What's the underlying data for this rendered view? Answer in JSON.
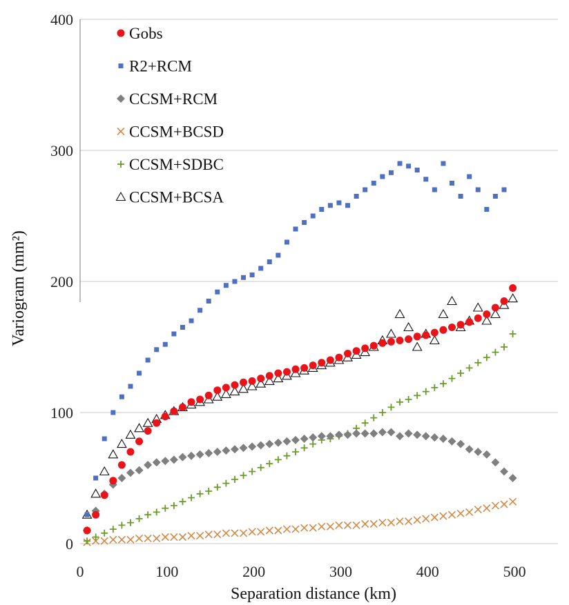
{
  "chart_data": {
    "type": "scatter",
    "xlabel": "Separation distance (km)",
    "ylabel": "Variogram (mm²)",
    "xlim": [
      0,
      550
    ],
    "ylim": [
      0,
      400
    ],
    "xticks": [
      "0",
      "100",
      "200",
      "300",
      "400",
      "500"
    ],
    "yticks": [
      "0",
      "100",
      "200",
      "300",
      "400"
    ],
    "grid": "horizontal",
    "legend_position": "top-left",
    "series": [
      {
        "name": "Gobs",
        "marker": "circle",
        "color": "#e8141a",
        "x": [
          8,
          18,
          28,
          38,
          48,
          58,
          68,
          78,
          88,
          98,
          108,
          118,
          128,
          138,
          148,
          158,
          168,
          178,
          188,
          198,
          208,
          218,
          228,
          238,
          248,
          258,
          268,
          278,
          288,
          298,
          308,
          318,
          328,
          338,
          348,
          358,
          368,
          378,
          388,
          398,
          408,
          418,
          428,
          438,
          448,
          458,
          468,
          478,
          488,
          498
        ],
        "y": [
          10,
          22,
          37,
          48,
          60,
          70,
          78,
          86,
          92,
          97,
          101,
          104,
          108,
          110,
          113,
          117,
          119,
          121,
          123,
          124,
          126,
          128,
          130,
          131,
          133,
          134,
          136,
          138,
          140,
          142,
          145,
          147,
          149,
          151,
          153,
          154,
          155,
          156,
          158,
          159,
          161,
          163,
          165,
          167,
          169,
          172,
          175,
          180,
          185,
          195
        ]
      },
      {
        "name": "R2+RCM",
        "marker": "square",
        "color": "#4f6fbf",
        "x": [
          8,
          18,
          28,
          38,
          48,
          58,
          68,
          78,
          88,
          98,
          108,
          118,
          128,
          138,
          148,
          158,
          168,
          178,
          188,
          198,
          208,
          218,
          228,
          238,
          248,
          258,
          268,
          278,
          288,
          298,
          308,
          318,
          328,
          338,
          348,
          358,
          368,
          378,
          388,
          398,
          408,
          418,
          428,
          438,
          448,
          458,
          468,
          478,
          488
        ],
        "y": [
          22,
          50,
          80,
          100,
          112,
          120,
          130,
          140,
          148,
          152,
          160,
          165,
          170,
          178,
          185,
          192,
          197,
          200,
          203,
          205,
          210,
          215,
          220,
          230,
          240,
          245,
          250,
          255,
          258,
          260,
          258,
          265,
          270,
          275,
          280,
          283,
          290,
          288,
          285,
          278,
          270,
          290,
          275,
          265,
          280,
          270,
          255,
          265,
          270
        ]
      },
      {
        "name": "CCSM+RCM",
        "marker": "diamond",
        "color": "#7f7f7f",
        "x": [
          8,
          18,
          28,
          38,
          48,
          58,
          68,
          78,
          88,
          98,
          108,
          118,
          128,
          138,
          148,
          158,
          168,
          178,
          188,
          198,
          208,
          218,
          228,
          238,
          248,
          258,
          268,
          278,
          288,
          298,
          308,
          318,
          328,
          338,
          348,
          358,
          368,
          378,
          388,
          398,
          408,
          418,
          428,
          438,
          448,
          458,
          468,
          478,
          488,
          498
        ],
        "y": [
          10,
          25,
          38,
          45,
          50,
          54,
          56,
          60,
          62,
          63,
          64,
          66,
          67,
          68,
          69,
          70,
          71,
          72,
          73,
          74,
          75,
          76,
          77,
          78,
          79,
          80,
          81,
          82,
          82,
          83,
          83,
          84,
          84,
          84,
          85,
          85,
          82,
          84,
          83,
          82,
          81,
          80,
          78,
          76,
          72,
          70,
          68,
          62,
          55,
          50
        ]
      },
      {
        "name": "CCSM+BCSD",
        "marker": "x",
        "color": "#d08a45",
        "x": [
          8,
          18,
          28,
          38,
          48,
          58,
          68,
          78,
          88,
          98,
          108,
          118,
          128,
          138,
          148,
          158,
          168,
          178,
          188,
          198,
          208,
          218,
          228,
          238,
          248,
          258,
          268,
          278,
          288,
          298,
          308,
          318,
          328,
          338,
          348,
          358,
          368,
          378,
          388,
          398,
          408,
          418,
          428,
          438,
          448,
          458,
          468,
          478,
          488,
          498
        ],
        "y": [
          1,
          2,
          2,
          3,
          3,
          3,
          4,
          4,
          4,
          5,
          5,
          5,
          6,
          6,
          7,
          7,
          8,
          8,
          8,
          9,
          9,
          10,
          10,
          11,
          11,
          12,
          12,
          13,
          13,
          14,
          14,
          14,
          15,
          15,
          16,
          16,
          17,
          17,
          18,
          19,
          20,
          21,
          22,
          23,
          24,
          26,
          27,
          29,
          30,
          32
        ]
      },
      {
        "name": "CCSM+SDBC",
        "marker": "plus",
        "color": "#6b9a2a",
        "x": [
          8,
          18,
          28,
          38,
          48,
          58,
          68,
          78,
          88,
          98,
          108,
          118,
          128,
          138,
          148,
          158,
          168,
          178,
          188,
          198,
          208,
          218,
          228,
          238,
          248,
          258,
          268,
          278,
          288,
          298,
          308,
          318,
          328,
          338,
          348,
          358,
          368,
          378,
          388,
          398,
          408,
          418,
          428,
          438,
          448,
          458,
          468,
          478,
          488,
          498
        ],
        "y": [
          2,
          5,
          8,
          11,
          14,
          16,
          19,
          22,
          24,
          27,
          29,
          32,
          35,
          38,
          40,
          43,
          46,
          49,
          52,
          55,
          58,
          61,
          64,
          67,
          70,
          73,
          76,
          79,
          80,
          82,
          84,
          88,
          92,
          96,
          100,
          104,
          108,
          110,
          113,
          116,
          119,
          122,
          126,
          130,
          134,
          138,
          142,
          146,
          150,
          160
        ]
      },
      {
        "name": "CCSM+BCSA",
        "marker": "triangle",
        "color": "#111111",
        "x": [
          8,
          18,
          28,
          38,
          48,
          58,
          68,
          78,
          88,
          98,
          108,
          118,
          128,
          138,
          148,
          158,
          168,
          178,
          188,
          198,
          208,
          218,
          228,
          238,
          248,
          258,
          268,
          278,
          288,
          298,
          308,
          318,
          328,
          338,
          348,
          358,
          368,
          378,
          388,
          398,
          408,
          418,
          428,
          438,
          448,
          458,
          468,
          478,
          488,
          498
        ],
        "y": [
          22,
          38,
          55,
          68,
          76,
          83,
          88,
          92,
          95,
          98,
          101,
          104,
          106,
          108,
          110,
          112,
          114,
          116,
          118,
          120,
          122,
          124,
          126,
          128,
          130,
          132,
          134,
          136,
          138,
          140,
          142,
          144,
          146,
          150,
          155,
          160,
          175,
          165,
          150,
          160,
          155,
          175,
          185,
          165,
          170,
          180,
          170,
          175,
          182,
          187
        ]
      }
    ]
  }
}
